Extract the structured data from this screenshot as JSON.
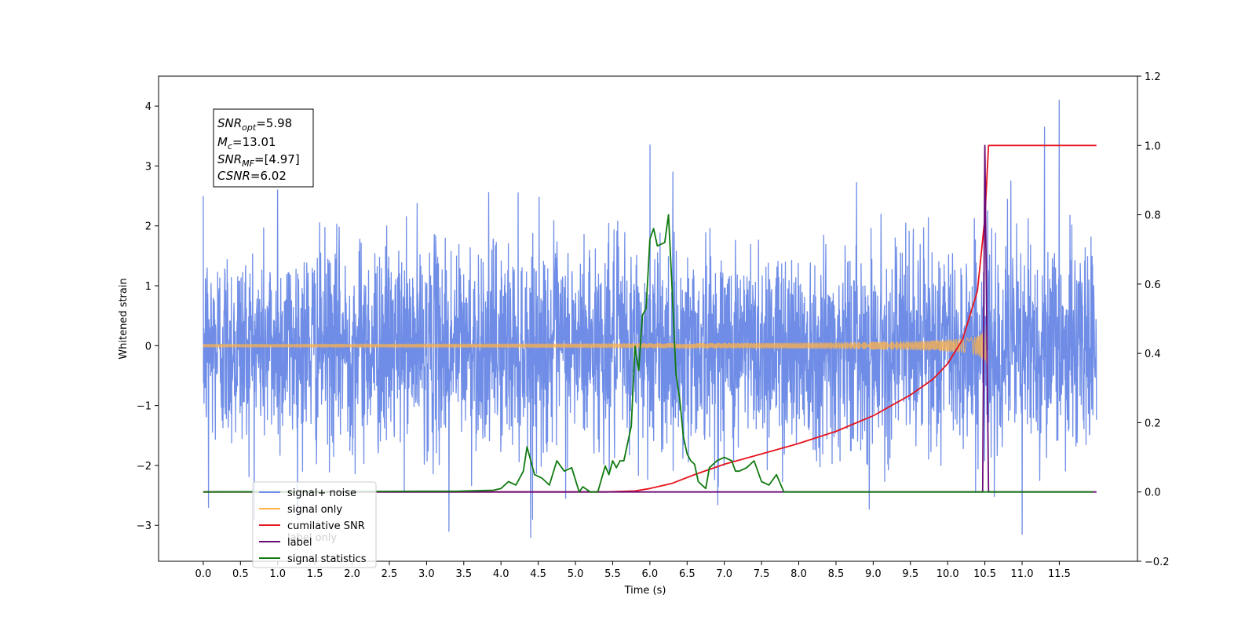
{
  "chart_data": {
    "type": "line",
    "xlabel": "Time (s)",
    "ylabel": "Whitened strain",
    "xlim": [
      -0.6,
      12.55
    ],
    "ylim": [
      -3.6,
      4.5
    ],
    "y2lim": [
      -0.2,
      1.2
    ],
    "x_ticks": [
      "0.0",
      "0.5",
      "1.0",
      "1.5",
      "2.0",
      "2.5",
      "3.0",
      "3.5",
      "4.0",
      "4.5",
      "5.0",
      "5.5",
      "6.0",
      "6.5",
      "7.0",
      "7.5",
      "8.0",
      "8.5",
      "9.0",
      "9.5",
      "10.0",
      "10.5",
      "11.0",
      "11.5"
    ],
    "y_ticks": [
      "4",
      "3",
      "2",
      "1",
      "0",
      "−1",
      "−2",
      "−3"
    ],
    "y2_ticks": [
      "1.2",
      "1.0",
      "0.8",
      "0.6",
      "0.4",
      "0.2",
      "0.0",
      "−0.2"
    ],
    "stats_box": {
      "snr_opt": {
        "symbol": "SNR",
        "sub": "opt",
        "value": "=5.98"
      },
      "mc": {
        "symbol": "M",
        "sub": "c",
        "value": "=13.01"
      },
      "snr_mf": {
        "symbol": "SNR",
        "sub": "MF",
        "value": "=[4.97]"
      },
      "csnr": {
        "symbol": "CSNR",
        "sub": "",
        "value": "=6.02"
      }
    },
    "legend": {
      "placement": "lower-left",
      "entries": [
        {
          "label": "signal+ noise",
          "color": "#6f8de6"
        },
        {
          "label": "signal only",
          "color": "#ffb347"
        },
        {
          "label": "cumilative SNR",
          "color": "#e6141e"
        },
        {
          "label": "label",
          "color": "#6a0a78"
        },
        {
          "label": "signal statistics",
          "color": "#107a10"
        }
      ],
      "hidden_text": "label only"
    },
    "series": [
      {
        "name": "signal+ noise",
        "axis": "left",
        "color": "#6f8de6",
        "kind": "noise",
        "x_range": [
          0.0,
          12.0
        ],
        "noise_sigma": 1.0,
        "peaks": [
          [
            0.0,
            2.5
          ],
          [
            1.0,
            2.6
          ],
          [
            6.0,
            3.35
          ],
          [
            11.5,
            4.1
          ],
          [
            11.3,
            3.65
          ],
          [
            11.0,
            -3.15
          ],
          [
            4.4,
            -3.2
          ],
          [
            3.3,
            -3.1
          ],
          [
            0.07,
            -2.7
          ],
          [
            10.85,
            2.75
          ]
        ]
      },
      {
        "name": "signal only",
        "axis": "left",
        "color": "#ffb347",
        "kind": "chirp",
        "x_range": [
          0.0,
          10.55
        ],
        "amplitude_end": 0.42
      },
      {
        "name": "cumilative SNR",
        "axis": "right",
        "color": "#e6141e",
        "x": [
          0.0,
          5.4,
          5.8,
          6.0,
          6.3,
          6.6,
          7.0,
          7.5,
          8.0,
          8.5,
          9.0,
          9.5,
          9.8,
          10.0,
          10.2,
          10.4,
          10.5,
          10.55,
          10.6,
          12.0
        ],
        "values": [
          0.0,
          0.0,
          0.003,
          0.01,
          0.025,
          0.05,
          0.08,
          0.11,
          0.14,
          0.175,
          0.22,
          0.28,
          0.325,
          0.37,
          0.44,
          0.58,
          0.79,
          1.0,
          1.0,
          1.0
        ]
      },
      {
        "name": "label",
        "axis": "right",
        "color": "#6a0a78",
        "x": [
          0.0,
          10.42,
          10.47,
          10.5,
          10.55,
          10.58,
          12.0
        ],
        "values": [
          0.0,
          0.0,
          0.0,
          1.0,
          0.0,
          0.0,
          0.0
        ]
      },
      {
        "name": "signal statistics",
        "axis": "right",
        "color": "#107a10",
        "x": [
          0.0,
          2.9,
          3.4,
          3.9,
          4.0,
          4.1,
          4.2,
          4.3,
          4.35,
          4.45,
          4.55,
          4.65,
          4.75,
          4.85,
          4.95,
          5.05,
          5.1,
          5.2,
          5.3,
          5.4,
          5.45,
          5.5,
          5.55,
          5.6,
          5.65,
          5.75,
          5.8,
          5.85,
          5.9,
          5.95,
          6.0,
          6.05,
          6.1,
          6.2,
          6.25,
          6.3,
          6.35,
          6.4,
          6.45,
          6.5,
          6.55,
          6.6,
          6.65,
          6.75,
          6.8,
          6.9,
          7.0,
          7.1,
          7.15,
          7.2,
          7.3,
          7.4,
          7.5,
          7.6,
          7.7,
          7.8,
          7.9,
          8.0,
          11.95
        ],
        "values": [
          0.0,
          0.002,
          0.002,
          0.005,
          0.01,
          0.03,
          0.02,
          0.06,
          0.13,
          0.05,
          0.04,
          0.02,
          0.09,
          0.06,
          0.07,
          0.0,
          0.015,
          0.0,
          0.0,
          0.075,
          0.05,
          0.09,
          0.07,
          0.09,
          0.09,
          0.19,
          0.42,
          0.35,
          0.51,
          0.53,
          0.73,
          0.76,
          0.71,
          0.72,
          0.8,
          0.58,
          0.34,
          0.27,
          0.16,
          0.11,
          0.09,
          0.08,
          0.03,
          0.01,
          0.07,
          0.09,
          0.1,
          0.09,
          0.06,
          0.06,
          0.07,
          0.09,
          0.03,
          0.02,
          0.05,
          0.0,
          0.0,
          0.0,
          0.0
        ]
      }
    ]
  }
}
